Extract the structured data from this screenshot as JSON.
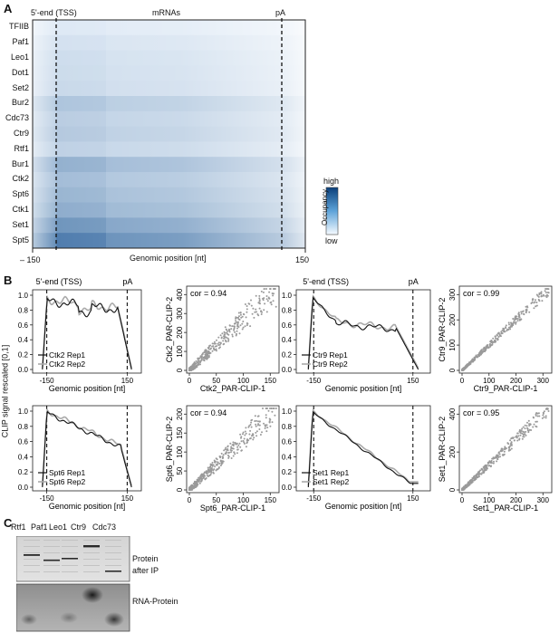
{
  "panels": {
    "a": "A",
    "b": "B",
    "c": "C"
  },
  "heatmap": {
    "tss_label": "5'-end (TSS)",
    "center_label": "mRNAs",
    "pa_label": "pA",
    "rows": [
      "TFIIB",
      "Paf1",
      "Leo1",
      "Dot1",
      "Set2",
      "Bur2",
      "Cdc73",
      "Ctr9",
      "Rtf1",
      "Bur1",
      "Ctk2",
      "Spt6",
      "Ctk1",
      "Set1",
      "Spt5"
    ],
    "row_intensity": [
      0.08,
      0.12,
      0.14,
      0.15,
      0.16,
      0.26,
      0.22,
      0.24,
      0.2,
      0.36,
      0.3,
      0.34,
      0.38,
      0.5,
      0.62
    ],
    "xlabel": "Genomic position [nt]",
    "xtick_left": "– 150",
    "xtick_right": "150",
    "legend_title": "Occupancy",
    "legend_high": "high",
    "legend_low": "low"
  },
  "profiles": {
    "ylabel": "CLIP signal rescaled [0,1]",
    "tss_label": "5'-end (TSS)",
    "pa_label": "pA",
    "xlabel": "Genomic position [nt]",
    "xticks": [
      "-150",
      "150"
    ],
    "yticks": [
      "0.0",
      "0.2",
      "0.4",
      "0.6",
      "0.8",
      "1.0"
    ],
    "items": [
      {
        "rep1": "Ctk2 Rep1",
        "rep2": "Ctk2 Rep2"
      },
      {
        "rep1": "Ctr9 Rep1",
        "rep2": "Ctr9 Rep2"
      },
      {
        "rep1": "Spt6 Rep1",
        "rep2": "Spt6 Rep2"
      },
      {
        "rep1": "Set1 Rep1",
        "rep2": "Set1 Rep2"
      }
    ]
  },
  "scatters": [
    {
      "cor": "cor = 0.94",
      "xlabel": "Ctk2_PAR-CLIP-1",
      "ylabel": "Ctk2_PAR-CLIP-2",
      "xticks": [
        "0",
        "50",
        "100",
        "150"
      ],
      "yticks": [
        "0",
        "100",
        "200",
        "300",
        "400"
      ],
      "max": [
        150,
        400
      ]
    },
    {
      "cor": "cor = 0.99",
      "xlabel": "Ctr9_PAR-CLIP-1",
      "ylabel": "Ctr9_PAR-CLIP-2",
      "xticks": [
        "0",
        "100",
        "200",
        "300"
      ],
      "yticks": [
        "0",
        "100",
        "200",
        "300"
      ],
      "max": [
        300,
        300
      ]
    },
    {
      "cor": "cor = 0.94",
      "xlabel": "Spt6_PAR-CLIP-1",
      "ylabel": "Spt6_PAR-CLIP-2",
      "xticks": [
        "0",
        "50",
        "100",
        "150"
      ],
      "yticks": [
        "0",
        "50",
        "100",
        "150",
        "200"
      ],
      "max": [
        150,
        200
      ]
    },
    {
      "cor": "cor = 0.95",
      "xlabel": "Set1_PAR-CLIP-1",
      "ylabel": "Set1_PAR-CLIP-2",
      "xticks": [
        "0",
        "100",
        "200",
        "300"
      ],
      "yticks": [
        "0",
        "200",
        "400"
      ],
      "max": [
        300,
        400
      ]
    }
  ],
  "gel": {
    "lanes": [
      "Rtf1",
      "Paf1",
      "Leo1",
      "Ctr9",
      "Cdc73"
    ],
    "top_label_1": "Protein",
    "top_label_2": "after IP",
    "bottom_label": "RNA-Protein"
  },
  "colors": {
    "heat_low": "#f4f9ff",
    "heat_high": "#0b4a8c",
    "rep1": "#111111",
    "rep2": "#aaaaaa",
    "dots": "#9a9a9a"
  }
}
